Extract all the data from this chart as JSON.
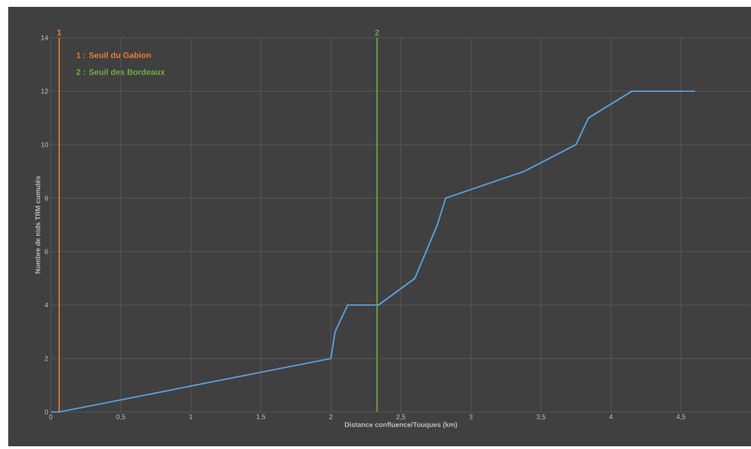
{
  "chart_data": {
    "type": "line",
    "xlabel": "Distance confluence/Touques (km)",
    "ylabel": "Nombre de nids TRM cumulés",
    "x": [
      0,
      0.06,
      2,
      2.03,
      2.12,
      2.34,
      2.6,
      2.76,
      2.82,
      3.38,
      3.75,
      3.84,
      4.15,
      4.6
    ],
    "series": [
      {
        "color": "#5b9bd5",
        "values": [
          0,
          0,
          2,
          3,
          4,
          4,
          5,
          7,
          8,
          9,
          10,
          11,
          12,
          12
        ]
      }
    ],
    "xlim": [
      0,
      5
    ],
    "ylim": [
      0,
      14
    ],
    "xticks": [
      0,
      {
        "value": 0.5,
        "label": "0,5"
      },
      1,
      {
        "value": 1.5,
        "label": "1,5"
      },
      2,
      {
        "value": 2.5,
        "label": "2,5"
      },
      3,
      {
        "value": 3.5,
        "label": "3,5"
      },
      4,
      {
        "value": 4.5,
        "label": "4,5"
      }
    ],
    "yticks": [
      0,
      2,
      4,
      6,
      8,
      10,
      12,
      14
    ],
    "ref_lines": [
      {
        "axis": "x",
        "value": 0.06,
        "color": "#ed7d31"
      },
      {
        "axis": "x",
        "value": 2.33,
        "color": "#70ad47"
      }
    ],
    "annotations": [
      {
        "text": "1",
        "x": 0.06,
        "y": 14
      },
      {
        "text": "2",
        "x": 2.33,
        "y": 14
      },
      "1 : Seuil du Gabion",
      "2 : Seuil des Bordeaux"
    ],
    "grid": true,
    "marker": "none",
    "line_style": "solid"
  }
}
